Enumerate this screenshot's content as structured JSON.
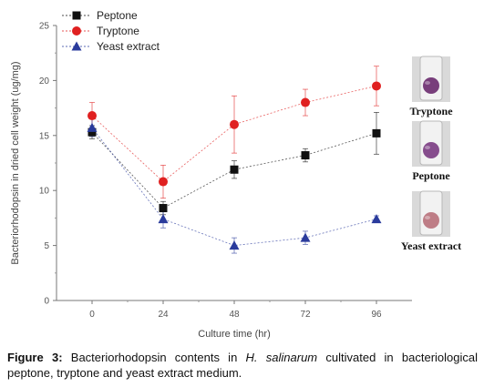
{
  "chart_data": {
    "type": "line",
    "xlabel": "Culture time (hr)",
    "ylabel": "Bacteriorhodopsin in dried cell weight (ug/mg)",
    "x": [
      0,
      24,
      48,
      72,
      96
    ],
    "x_ticks": [
      "0",
      "24",
      "48",
      "72",
      "96"
    ],
    "y_ticks": [
      "0",
      "5",
      "10",
      "15",
      "20",
      "25"
    ],
    "xlim": [
      -12,
      108
    ],
    "ylim": [
      0,
      25
    ],
    "grid": false,
    "legend_position": "top-left",
    "series": [
      {
        "name": "Peptone",
        "marker": "square",
        "color": "#111111",
        "values": [
          15.3,
          8.4,
          11.9,
          13.2,
          15.2
        ],
        "errors": [
          0.6,
          0.6,
          0.8,
          0.6,
          1.9
        ]
      },
      {
        "name": "Tryptone",
        "marker": "circle",
        "color": "#e02020",
        "values": [
          16.8,
          10.8,
          16.0,
          18.0,
          19.5
        ],
        "errors": [
          1.2,
          1.5,
          2.6,
          1.2,
          1.8
        ]
      },
      {
        "name": "Yeast extract",
        "marker": "triangle",
        "color": "#2a3b9c",
        "values": [
          15.7,
          7.4,
          5.0,
          5.7,
          7.4
        ],
        "errors": [
          0.8,
          0.8,
          0.7,
          0.6,
          0.3
        ]
      }
    ],
    "tubes": [
      {
        "label": "Tryptone",
        "liquid_color": "#6a2a6e"
      },
      {
        "label": "Peptone",
        "liquid_color": "#7a3b82"
      },
      {
        "label": "Yeast extract",
        "liquid_color": "#b8707a"
      }
    ]
  },
  "caption": {
    "figure_label": "Figure 3:",
    "text_before": " Bacteriorhodopsin contents in ",
    "organism": "H. salinarum",
    "text_after": " cultivated in bacteriological peptone, tryptone and yeast extract medium."
  }
}
